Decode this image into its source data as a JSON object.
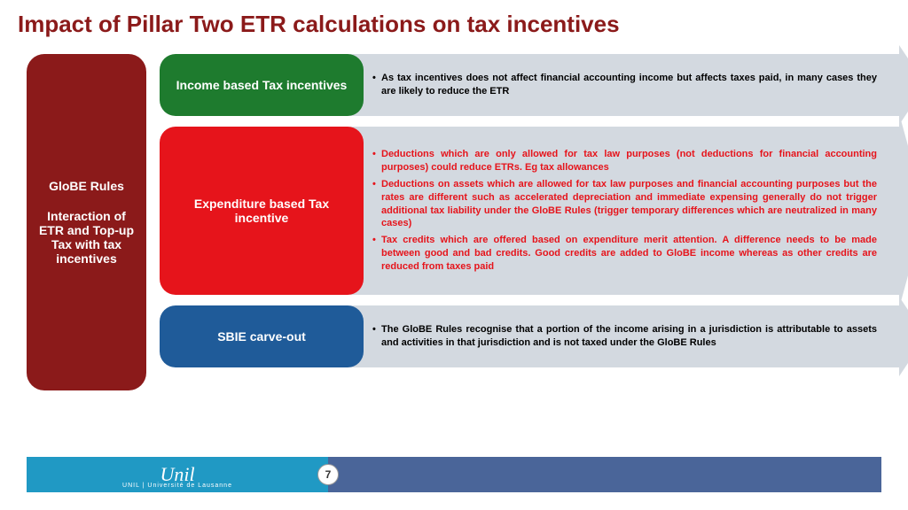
{
  "title": "Impact of Pillar Two ETR calculations on tax incentives",
  "leftPillar": {
    "line1": "GloBE Rules",
    "line2": "Interaction of ETR and Top-up Tax with tax incentives"
  },
  "rows": [
    {
      "label": "Income based Tax incentives",
      "labelColor": "#1e7b2e",
      "textColor": "#000000",
      "bullets": [
        "As tax incentives does not affect financial accounting income but affects taxes paid, in many cases they are likely to reduce the ETR"
      ]
    },
    {
      "label": "Expenditure based Tax incentive",
      "labelColor": "#e6141b",
      "textColor": "#e6141b",
      "bullets": [
        "Deductions which are only allowed for tax law purposes  (not deductions for financial accounting purposes) could reduce ETRs. Eg tax allowances",
        "Deductions on assets which are allowed for tax law purposes and financial accounting purposes but the rates are different such as accelerated depreciation and immediate expensing generally do not trigger additional tax liability under the GloBE Rules (trigger temporary differences which are neutralized in many cases)",
        "Tax credits which are offered based on expenditure merit attention. A difference needs to be made between good and bad credits. Good credits are added to GloBE income whereas as other credits are reduced from taxes paid"
      ]
    },
    {
      "label": "SBIE carve-out",
      "labelColor": "#1f5b99",
      "textColor": "#000000",
      "bullets": [
        "The GloBE Rules recognise that a portion of the income arising in a jurisdiction is attributable to assets and activities in that jurisdiction and is not taxed under the GloBE Rules"
      ]
    }
  ],
  "footer": {
    "logo": "Unil",
    "logoSub": "UNIL | Université de Lausanne",
    "pageNumber": "7"
  },
  "colors": {
    "title": "#8b1a1a",
    "pillar": "#8b1a1a",
    "arrow": "#d3d9e0",
    "footerLeft": "#2099c4",
    "footerRight": "#4a6599"
  }
}
